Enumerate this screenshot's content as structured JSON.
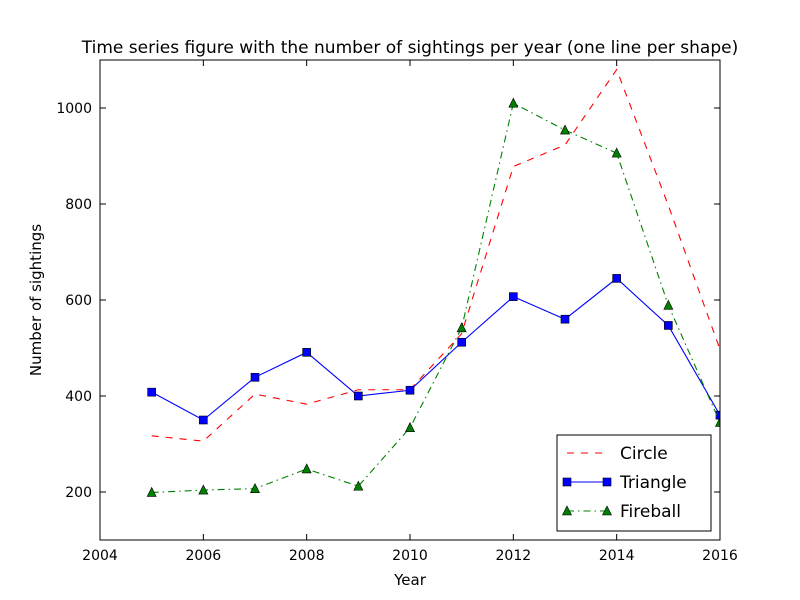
{
  "chart_data": {
    "type": "line",
    "title": "Time series figure with the number of sightings per year (one line per shape)",
    "xlabel": "Year",
    "ylabel": "Number of sightings",
    "xlim": [
      2004,
      2016
    ],
    "ylim": [
      100,
      1100
    ],
    "xticks": [
      2004,
      2006,
      2008,
      2010,
      2012,
      2014,
      2016
    ],
    "yticks": [
      200,
      400,
      600,
      800,
      1000
    ],
    "grid": false,
    "legend_position": "lower right",
    "x": [
      2005,
      2006,
      2007,
      2008,
      2009,
      2010,
      2011,
      2012,
      2013,
      2014,
      2015,
      2016
    ],
    "series": [
      {
        "name": "Circle",
        "color": "#ff0000",
        "line_style": "dashed",
        "marker": "none",
        "values": [
          317,
          306,
          404,
          383,
          413,
          413,
          530,
          878,
          923,
          1080,
          797,
          497
        ]
      },
      {
        "name": "Triangle",
        "color": "#0000ff",
        "line_style": "solid",
        "marker": "square",
        "values": [
          408,
          350,
          439,
          491,
          400,
          412,
          512,
          607,
          560,
          645,
          547,
          360
        ]
      },
      {
        "name": "Fireball",
        "color": "#008000",
        "line_style": "dashdot",
        "marker": "triangle",
        "values": [
          199,
          204,
          207,
          248,
          212,
          334,
          542,
          1010,
          954,
          906,
          589,
          345
        ]
      }
    ]
  }
}
